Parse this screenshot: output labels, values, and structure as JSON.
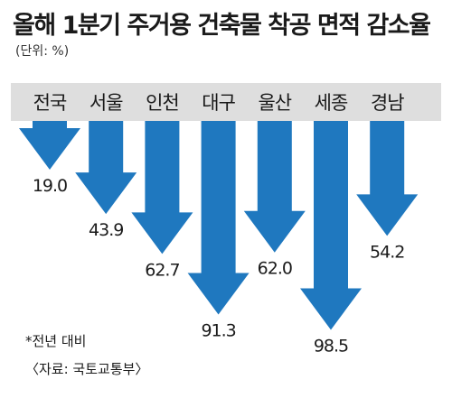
{
  "title": "올해 1분기 주거용 건축물 착공 면적 감소율",
  "unit_label": "(단위: %)",
  "note": "*전년 대비",
  "source": "〈자료: 국토교통부〉",
  "colors": {
    "arrow": "#1f78bf",
    "band": "#dedede",
    "text": "#1a1a1a"
  },
  "chart_data": {
    "type": "bar",
    "orientation": "downward-arrows",
    "categories": [
      "전국",
      "서울",
      "인천",
      "대구",
      "울산",
      "세종",
      "경남"
    ],
    "values": [
      19.0,
      43.9,
      62.7,
      91.3,
      62.0,
      98.5,
      54.2
    ],
    "value_labels": [
      "19.0",
      "43.9",
      "62.7",
      "91.3",
      "62.0",
      "98.5",
      "54.2"
    ],
    "ylim": [
      0,
      100
    ],
    "grid": false,
    "legend": "none"
  }
}
